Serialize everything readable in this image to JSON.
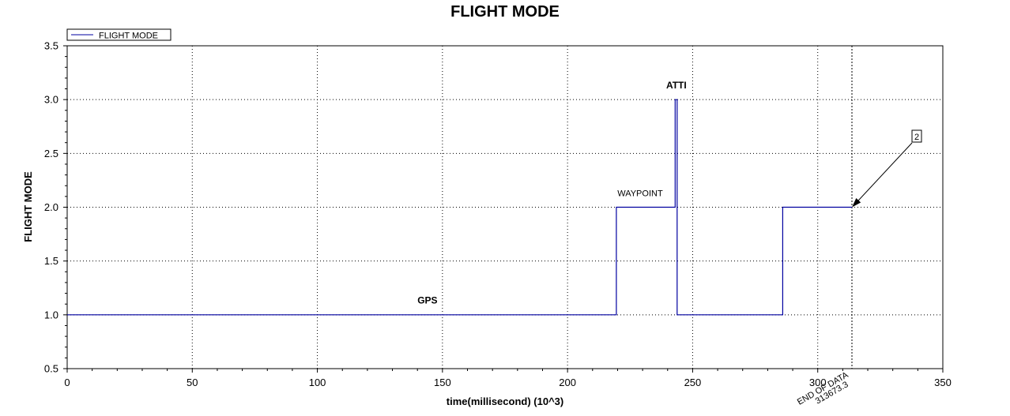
{
  "chart_data": {
    "type": "line",
    "title": "FLIGHT MODE",
    "xlabel": "time(millisecond) (10^3)",
    "ylabel": "FLIGHT MODE",
    "xlim": [
      0,
      350
    ],
    "ylim": [
      0.5,
      3.5
    ],
    "xticks": [
      0,
      50,
      100,
      150,
      200,
      250,
      300,
      350
    ],
    "yticks": [
      0.5,
      1.0,
      1.5,
      2.0,
      2.5,
      3.0,
      3.5
    ],
    "ytick_labels": [
      "0.5",
      "1.0",
      "1.5",
      "2.0",
      "2.5",
      "3.0",
      "3.5"
    ],
    "grid": true,
    "legend_position": "top-left",
    "series": [
      {
        "name": "FLIGHT MODE",
        "color": "#0000a0",
        "x": [
          0,
          219.5,
          219.5,
          243.0,
          243.0,
          243.8,
          243.8,
          286.0,
          286.0,
          313.7
        ],
        "y": [
          1,
          1,
          2,
          2,
          3,
          3,
          1,
          1,
          2,
          2
        ]
      }
    ],
    "annotations": [
      {
        "text": "GPS",
        "x": 144,
        "y": 1.06
      },
      {
        "text": "WAYPOINT",
        "x": 229,
        "y": 2.06
      },
      {
        "text": "ATTI",
        "x": 243.5,
        "y": 3.06
      }
    ],
    "end_marker": {
      "x": 313.6733,
      "label": "END OF DATA",
      "value_label": "313673.3"
    },
    "callout": {
      "label": "2",
      "x": 313.7,
      "y": 2.0
    }
  }
}
